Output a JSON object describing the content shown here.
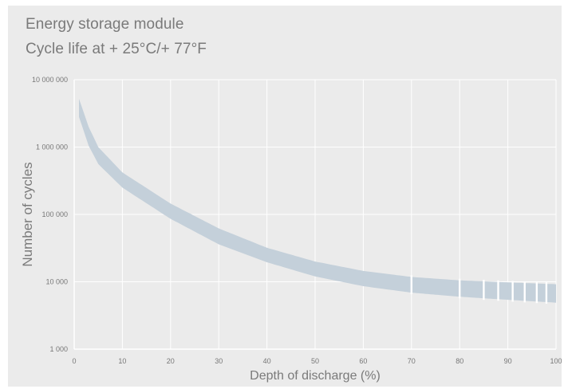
{
  "chart_data": {
    "type": "area",
    "title": "Energy storage module",
    "subtitle": "Cycle life at + 25°C/+ 77°F",
    "xlabel": "Depth of discharge (%)",
    "ylabel": "Number of cycles",
    "x_ticks": [
      "0",
      "10",
      "20",
      "30",
      "40",
      "50",
      "60",
      "70",
      "80",
      "90",
      "100"
    ],
    "y_ticks": [
      "1 000",
      "10 000",
      "100 000",
      "1 000 000",
      "10 000 000"
    ],
    "y_tick_values": [
      1000,
      10000,
      100000,
      1000000,
      10000000
    ],
    "xlim": [
      0,
      100
    ],
    "ylim": [
      1000,
      10000000
    ],
    "y_scale": "log",
    "grid": true,
    "band": {
      "color": "#c4d0da",
      "x": [
        1,
        3,
        5,
        10,
        20,
        30,
        40,
        50,
        60,
        70,
        80,
        90,
        100
      ],
      "upper": [
        5200000,
        2000000,
        1000000,
        420000,
        145000,
        62000,
        32000,
        20000,
        14500,
        11800,
        10500,
        9800,
        9200
      ],
      "lower": [
        2800000,
        1050000,
        560000,
        250000,
        86000,
        36000,
        19500,
        12000,
        8600,
        6900,
        6000,
        5400,
        4900
      ],
      "gaps_x": [
        70,
        80,
        85,
        88,
        91,
        93.5,
        96,
        98
      ]
    }
  }
}
